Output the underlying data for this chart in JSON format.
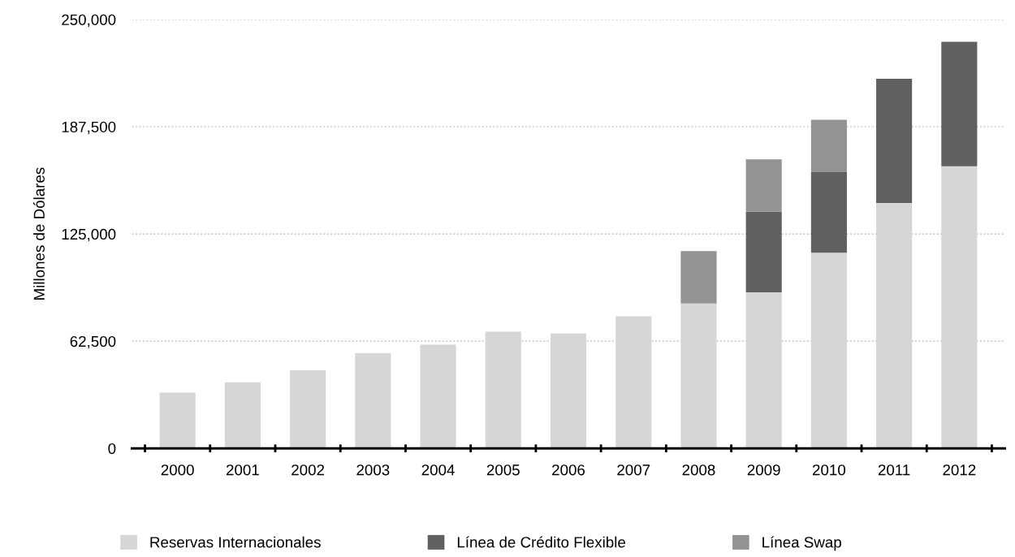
{
  "chart_data": {
    "type": "bar",
    "stacked": true,
    "ylabel": "Millones de Dólares",
    "categories": [
      "2000",
      "2001",
      "2002",
      "2003",
      "2004",
      "2005",
      "2006",
      "2007",
      "2008",
      "2009",
      "2010",
      "2011",
      "2012"
    ],
    "series": [
      {
        "name": "Reservas Internacionales",
        "color": "#d6d6d6",
        "values": [
          32500,
          38500,
          45500,
          55500,
          60500,
          68000,
          67000,
          77000,
          84500,
          91000,
          114000,
          143000,
          164500
        ]
      },
      {
        "name": "Línea de Crédito Flexible",
        "color": "#606060",
        "values": [
          null,
          null,
          null,
          null,
          null,
          null,
          null,
          null,
          null,
          47000,
          47000,
          72500,
          72500
        ]
      },
      {
        "name": "Línea Swap",
        "color": "#939393",
        "values": [
          null,
          null,
          null,
          null,
          null,
          null,
          null,
          null,
          30500,
          30500,
          30500,
          null,
          null
        ]
      }
    ],
    "ylim": [
      0,
      250000
    ],
    "yticks": [
      {
        "value": 0,
        "label": "0"
      },
      {
        "value": 62500,
        "label": "62,500"
      },
      {
        "value": 125000,
        "label": "125,000"
      },
      {
        "value": 187500,
        "label": "187,500"
      },
      {
        "value": 250000,
        "label": "250,000"
      }
    ],
    "grid": "y",
    "legend": "bottom"
  }
}
